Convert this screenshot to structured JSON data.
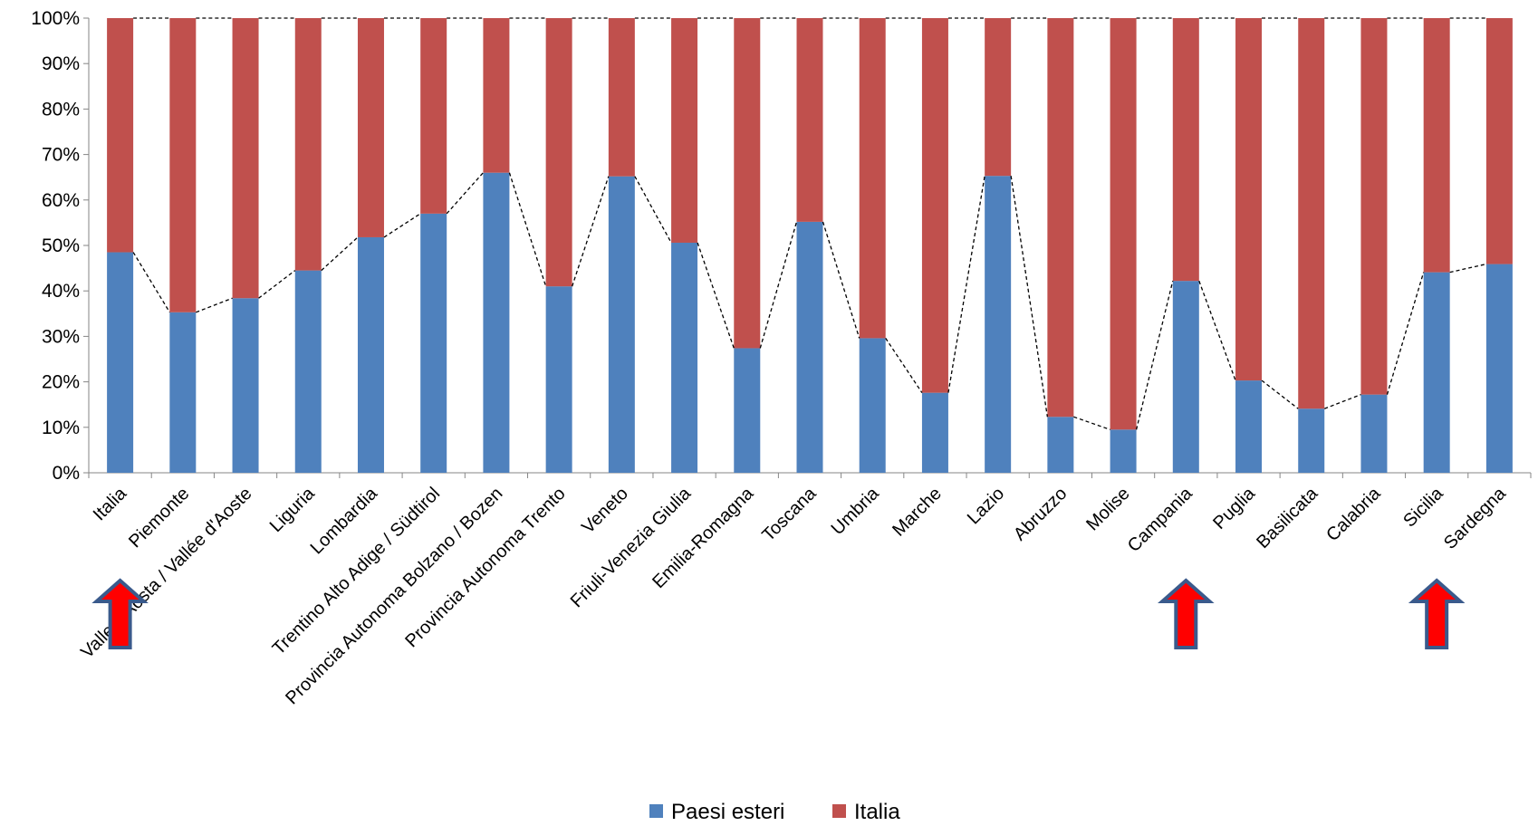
{
  "chart_data": {
    "type": "bar",
    "stacked": true,
    "percent_stacked": true,
    "categories": [
      "Italia",
      "Piemonte",
      "Valle d'Aosta / Vallée d'Aoste",
      "Liguria",
      "Lombardia",
      "Trentino Alto Adige / Südtirol",
      "Provincia Autonoma Bolzano / Bozen",
      "Provincia Autonoma Trento",
      "Veneto",
      "Friuli-Venezia Giulia",
      "Emilia-Romagna",
      "Toscana",
      "Umbria",
      "Marche",
      "Lazio",
      "Abruzzo",
      "Molise",
      "Campania",
      "Puglia",
      "Basilicata",
      "Calabria",
      "Sicilia",
      "Sardegna"
    ],
    "series": [
      {
        "name": "Paesi esteri",
        "color": "#4F81BD",
        "values": [
          48.5,
          35.3,
          38.4,
          44.5,
          51.8,
          57.0,
          66.0,
          41.0,
          65.2,
          50.6,
          27.4,
          55.2,
          29.6,
          17.6,
          65.3,
          12.3,
          9.5,
          42.2,
          20.3,
          14.1,
          17.2,
          44.1,
          45.9
        ]
      },
      {
        "name": "Italia",
        "color": "#C0504D",
        "values": [
          51.5,
          64.7,
          61.6,
          55.5,
          48.2,
          43.0,
          34.0,
          59.0,
          34.8,
          49.4,
          72.6,
          44.8,
          70.4,
          82.4,
          34.7,
          87.7,
          90.5,
          57.8,
          79.7,
          85.9,
          82.8,
          55.9,
          54.1
        ]
      }
    ],
    "ylim": [
      0,
      100
    ],
    "yticks": [
      "0%",
      "10%",
      "20%",
      "30%",
      "40%",
      "50%",
      "60%",
      "70%",
      "80%",
      "90%",
      "100%"
    ],
    "series_lines": "dashed",
    "legend_position": "bottom",
    "annotations": [
      {
        "type": "arrow-up",
        "category": "Italia",
        "fill": "#FF0000",
        "outline": "#3A5A8C"
      },
      {
        "type": "arrow-up",
        "category": "Campania",
        "fill": "#FF0000",
        "outline": "#3A5A8C"
      },
      {
        "type": "arrow-up",
        "category": "Sicilia",
        "fill": "#FF0000",
        "outline": "#3A5A8C"
      }
    ]
  }
}
